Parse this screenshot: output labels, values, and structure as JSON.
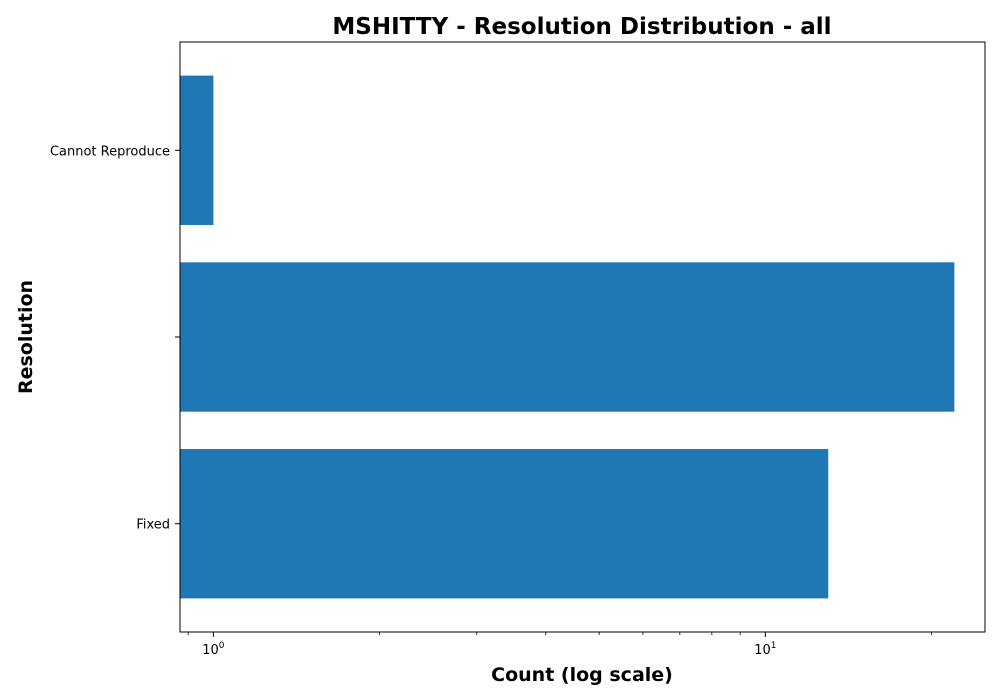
{
  "chart_data": {
    "type": "bar",
    "orientation": "horizontal",
    "title": "MSHITTY - Resolution Distribution - all",
    "xlabel": "Count (log scale)",
    "ylabel": "Resolution",
    "x_scale": "log",
    "xlim": [
      0.87,
      25
    ],
    "categories": [
      "Cannot Reproduce",
      "",
      "Fixed"
    ],
    "values": [
      1,
      22,
      13
    ],
    "bar_color": "#1f77b4",
    "x_ticks": [
      {
        "value": 1,
        "base": "10",
        "exp": "0"
      },
      {
        "value": 10,
        "base": "10",
        "exp": "1"
      }
    ],
    "grid": false,
    "legend": "none"
  }
}
